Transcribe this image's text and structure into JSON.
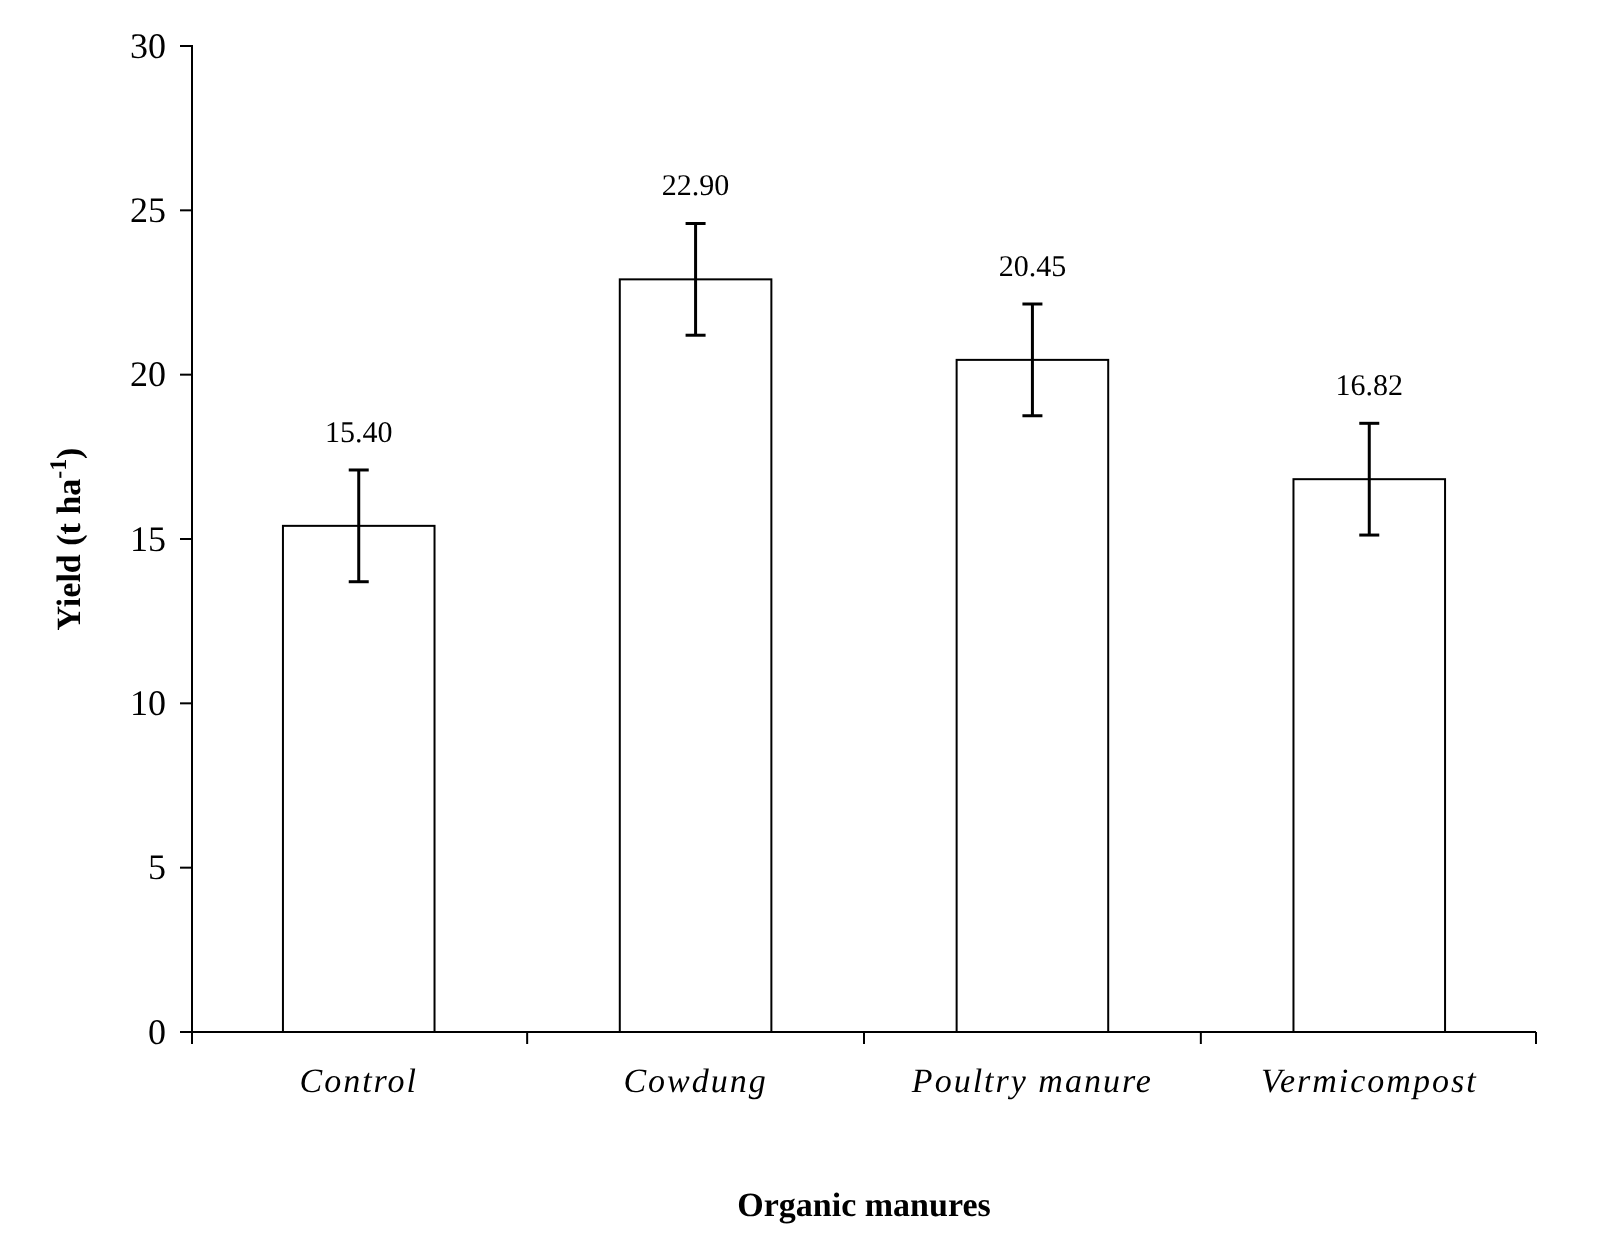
{
  "chart_data": {
    "type": "bar",
    "xlabel": "Organic manures",
    "ylabel": "Yield (t ha$^{-1}$)",
    "categories": [
      "Control",
      "Cowdung",
      "Poultry manure",
      "Vermicompost"
    ],
    "values": [
      15.4,
      22.9,
      20.45,
      16.82
    ],
    "errors": [
      1.7,
      1.7,
      1.7,
      1.7
    ],
    "color": "#ffffff",
    "value_labels": [
      "15.40",
      "22.90",
      "20.45",
      "16.82"
    ],
    "ylim": [
      0,
      30
    ],
    "yticks": [
      0,
      5,
      10,
      15,
      20,
      25,
      30
    ],
    "grid": false
  }
}
